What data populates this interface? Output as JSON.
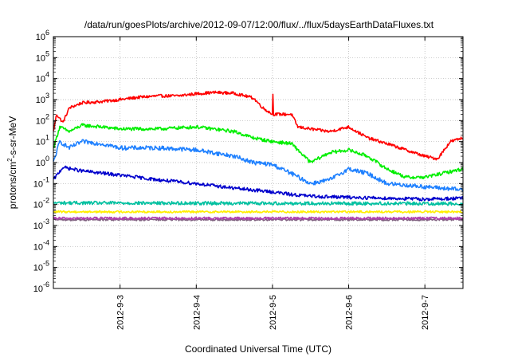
{
  "chart_data": {
    "type": "line",
    "title": "/data/run/goesPlots/archive/2012-09-07/12:00/flux/../flux/5daysEarthDataFluxes.txt",
    "xlabel": "Coordinated Universal Time (UTC)",
    "ylabel_main": "protons/cm",
    "ylabel_sup": "2",
    "ylabel_rest": "-s-sr-MeV",
    "yscale": "log",
    "ylim": [
      1e-06,
      1000000.0
    ],
    "xlim": [
      "2012-09-02 03:00",
      "2012-09-07 12:00"
    ],
    "x_ticks": [
      "2012-9-3",
      "2012-9-4",
      "2012-9-5",
      "2012-9-6",
      "2012-9-7"
    ],
    "y_ticks": [
      {
        "base": "10",
        "exp": "-6"
      },
      {
        "base": "10",
        "exp": "-5"
      },
      {
        "base": "10",
        "exp": "-4"
      },
      {
        "base": "10",
        "exp": "-3"
      },
      {
        "base": "10",
        "exp": "-2"
      },
      {
        "base": "10",
        "exp": "-1"
      },
      {
        "base": "10",
        "exp": "0"
      },
      {
        "base": "10",
        "exp": "1"
      },
      {
        "base": "10",
        "exp": "2"
      },
      {
        "base": "10",
        "exp": "3"
      },
      {
        "base": "10",
        "exp": "4"
      },
      {
        "base": "10",
        "exp": "5"
      },
      {
        "base": "10",
        "exp": "6"
      }
    ],
    "grid": true,
    "legend": "none",
    "series": [
      {
        "color": "#ff0000",
        "noise": 0.07,
        "x": [
          "2012-09-02 03:00",
          "2012-09-02 04:00",
          "2012-09-02 06:00",
          "2012-09-02 08:00",
          "2012-09-02 12:00",
          "2012-09-02 18:00",
          "2012-09-03 00:00",
          "2012-09-03 06:00",
          "2012-09-03 12:00",
          "2012-09-03 18:00",
          "2012-09-04 00:00",
          "2012-09-04 06:00",
          "2012-09-04 12:00",
          "2012-09-04 18:00",
          "2012-09-04 21:00",
          "2012-09-05 00:00",
          "2012-09-05 06:00",
          "2012-09-05 08:00",
          "2012-09-05 12:00",
          "2012-09-05 18:00",
          "2012-09-06 00:00",
          "2012-09-06 06:00",
          "2012-09-06 12:00",
          "2012-09-06 18:00",
          "2012-09-07 00:00",
          "2012-09-07 04:00",
          "2012-09-07 08:00",
          "2012-09-07 12:00"
        ],
        "y": [
          30,
          200,
          80,
          400,
          700,
          800,
          1000,
          1300,
          1500,
          1500,
          1900,
          2200,
          2000,
          1200,
          400,
          200,
          200,
          50,
          40,
          30,
          50,
          15,
          8,
          4,
          2,
          1.5,
          10,
          15
        ]
      },
      {
        "color": "#00ee00",
        "noise": 0.08,
        "x": [
          "2012-09-02 03:00",
          "2012-09-02 05:00",
          "2012-09-02 08:00",
          "2012-09-02 12:00",
          "2012-09-02 18:00",
          "2012-09-03 00:00",
          "2012-09-03 12:00",
          "2012-09-04 00:00",
          "2012-09-04 12:00",
          "2012-09-04 18:00",
          "2012-09-05 00:00",
          "2012-09-05 06:00",
          "2012-09-05 12:00",
          "2012-09-05 18:00",
          "2012-09-06 00:00",
          "2012-09-06 06:00",
          "2012-09-06 12:00",
          "2012-09-06 18:00",
          "2012-09-07 00:00",
          "2012-09-07 12:00"
        ],
        "y": [
          5,
          50,
          30,
          60,
          50,
          40,
          40,
          50,
          30,
          15,
          10,
          8,
          1,
          3,
          4,
          2,
          0.5,
          0.2,
          0.2,
          0.5
        ]
      },
      {
        "color": "#1e80ff",
        "noise": 0.1,
        "x": [
          "2012-09-02 03:00",
          "2012-09-02 05:00",
          "2012-09-02 08:00",
          "2012-09-02 12:00",
          "2012-09-02 18:00",
          "2012-09-03 00:00",
          "2012-09-03 12:00",
          "2012-09-04 00:00",
          "2012-09-04 12:00",
          "2012-09-04 18:00",
          "2012-09-05 00:00",
          "2012-09-05 06:00",
          "2012-09-05 12:00",
          "2012-09-05 18:00",
          "2012-09-06 00:00",
          "2012-09-06 06:00",
          "2012-09-06 12:00",
          "2012-09-07 00:00",
          "2012-09-07 12:00"
        ],
        "y": [
          1,
          10,
          5,
          10,
          8,
          5,
          5,
          4,
          2,
          1,
          0.8,
          0.3,
          0.1,
          0.15,
          0.5,
          0.3,
          0.1,
          0.07,
          0.05
        ]
      },
      {
        "color": "#0000cc",
        "noise": 0.08,
        "x": [
          "2012-09-02 03:00",
          "2012-09-02 06:00",
          "2012-09-02 12:00",
          "2012-09-03 00:00",
          "2012-09-03 12:00",
          "2012-09-04 00:00",
          "2012-09-04 12:00",
          "2012-09-05 00:00",
          "2012-09-05 06:00",
          "2012-09-05 12:00",
          "2012-09-06 00:00",
          "2012-09-06 12:00",
          "2012-09-07 00:00",
          "2012-09-07 12:00"
        ],
        "y": [
          0.15,
          0.6,
          0.4,
          0.25,
          0.15,
          0.1,
          0.06,
          0.04,
          0.03,
          0.025,
          0.022,
          0.02,
          0.018,
          0.02
        ]
      },
      {
        "color": "#00c0a0",
        "noise": 0.08,
        "x": [
          "2012-09-02 03:00",
          "2012-09-07 12:00"
        ],
        "y": [
          0.012,
          0.011
        ]
      },
      {
        "color": "#ffee00",
        "noise": 0.05,
        "x": [
          "2012-09-02 03:00",
          "2012-09-07 12:00"
        ],
        "y": [
          0.0045,
          0.0045
        ]
      },
      {
        "color": "#b040b0",
        "noise": 0.06,
        "x": [
          "2012-09-02 03:00",
          "2012-09-07 12:00"
        ],
        "y": [
          0.0022,
          0.0022
        ]
      },
      {
        "color": "#806080",
        "noise": 0.05,
        "x": [
          "2012-09-02 03:00",
          "2012-09-07 12:00"
        ],
        "y": [
          0.0019,
          0.0019
        ]
      }
    ],
    "spike": {
      "series": 0,
      "x": "2012-09-05 00:05",
      "y": 1800
    }
  }
}
